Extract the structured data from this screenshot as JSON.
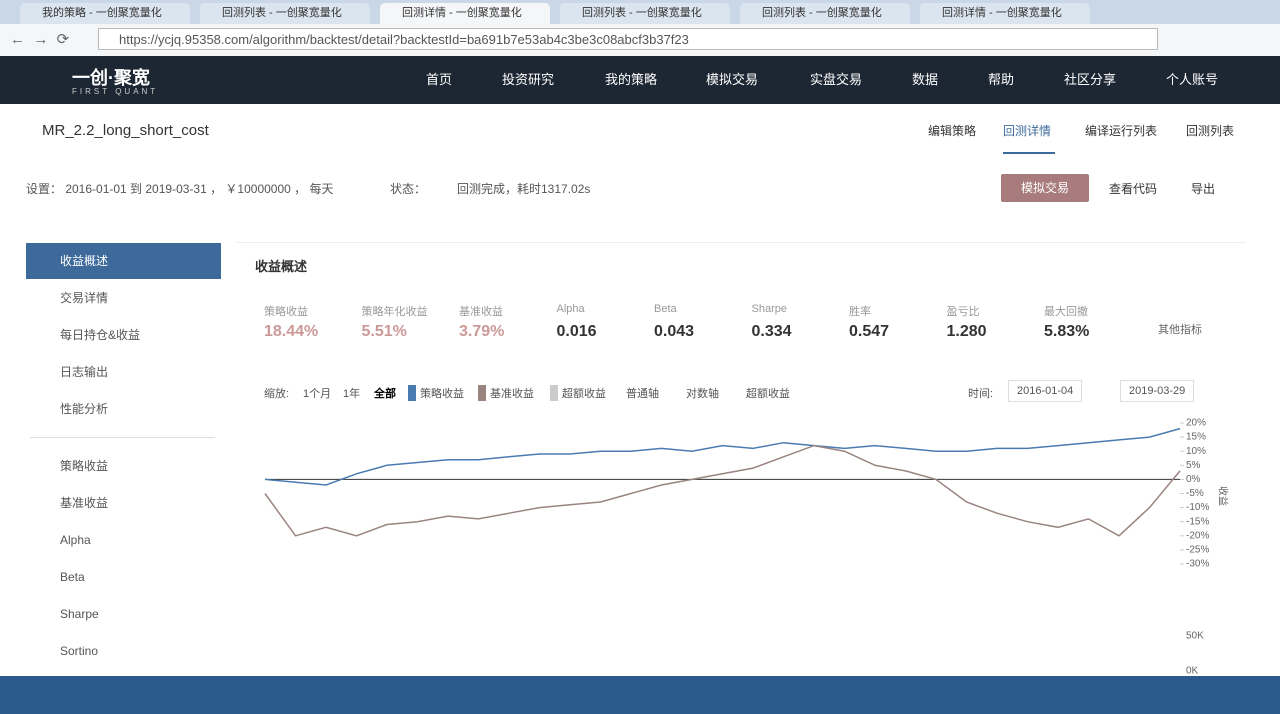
{
  "browser": {
    "tabs": [
      "我的策略 - 一创聚宽量化",
      "回测列表 - 一创聚宽量化",
      "回测详情 - 一创聚宽量化",
      "回测列表 - 一创聚宽量化",
      "回测列表 - 一创聚宽量化",
      "回测详情 - 一创聚宽量化"
    ],
    "url": "https://ycjq.95358.com/algorithm/backtest/detail?backtestId=ba691b7e53ab4c3be3c08abcf3b37f23"
  },
  "nav": {
    "logo": "一创·聚宽",
    "logo_sub": "FIRST QUANT",
    "items": [
      "首页",
      "投资研究",
      "我的策略",
      "模拟交易",
      "实盘交易",
      "数据",
      "帮助",
      "社区分享",
      "个人账号"
    ]
  },
  "header": {
    "title": "MR_2.2_long_short_cost",
    "links": [
      "编辑策略",
      "回测详情",
      "编译运行列表",
      "回测列表"
    ],
    "settings": "设置： 2016-01-01 到 2019-03-31 ， ￥10000000 ， 每天",
    "status_label": "状态：",
    "status": "回测完成，耗时1317.02s",
    "buttons": [
      "模拟交易",
      "查看代码",
      "导出"
    ]
  },
  "sidebar": [
    "收益概述",
    "交易详情",
    "每日持仓&收益",
    "日志输出",
    "性能分析",
    "策略收益",
    "基准收益",
    "Alpha",
    "Beta",
    "Sharpe",
    "Sortino"
  ],
  "panel": {
    "title": "收益概述",
    "metrics": [
      {
        "label": "策略收益",
        "value": "18.44%"
      },
      {
        "label": "策略年化收益",
        "value": "5.51%"
      },
      {
        "label": "基准收益",
        "value": "3.79%"
      },
      {
        "label": "Alpha",
        "value": "0.016"
      },
      {
        "label": "Beta",
        "value": "0.043"
      },
      {
        "label": "Sharpe",
        "value": "0.334"
      },
      {
        "label": "胜率",
        "value": "0.547"
      },
      {
        "label": "盈亏比",
        "value": "1.280"
      },
      {
        "label": "最大回撤",
        "value": "5.83%"
      }
    ],
    "more": "其他指标",
    "controls": {
      "zoom_label": "缩放:",
      "zoom": [
        "1个月",
        "1年",
        "全部"
      ],
      "legend": [
        "策略收益",
        "基准收益",
        "超额收益"
      ],
      "axis": [
        "普通轴",
        "对数轴",
        "超额收益"
      ],
      "time_label": "时间:",
      "start": "2016-01-04",
      "end": "2019-03-29"
    }
  },
  "chart": {
    "type": "line",
    "y_label": "收益",
    "ylim": [
      -30,
      20
    ],
    "yticks": [
      {
        "value": 20,
        "label": "20%"
      },
      {
        "value": 15,
        "label": "15%"
      },
      {
        "value": 10,
        "label": "10%"
      },
      {
        "value": 5,
        "label": "5%"
      },
      {
        "value": 0,
        "label": "0%"
      },
      {
        "value": -5,
        "label": "-5%"
      },
      {
        "value": -10,
        "label": "-10%"
      },
      {
        "value": -15,
        "label": "-15%"
      },
      {
        "value": -20,
        "label": "-20%"
      },
      {
        "value": -25,
        "label": "-25%"
      },
      {
        "value": -30,
        "label": "-30%"
      }
    ],
    "series": [
      {
        "name": "策略收益",
        "color": "#4a7bb0",
        "values": [
          0,
          -1,
          -2,
          2,
          5,
          6,
          7,
          7,
          8,
          9,
          9,
          10,
          10,
          11,
          10,
          12,
          11,
          13,
          12,
          11,
          12,
          11,
          10,
          10,
          11,
          11,
          12,
          13,
          14,
          15,
          18
        ]
      },
      {
        "name": "基准收益",
        "color": "#9a8480",
        "values": [
          -5,
          -20,
          -17,
          -20,
          -16,
          -15,
          -13,
          -14,
          -12,
          -10,
          -9,
          -8,
          -5,
          -2,
          0,
          2,
          4,
          8,
          12,
          10,
          5,
          3,
          0,
          -8,
          -12,
          -15,
          -17,
          -14,
          -20,
          -10,
          3
        ]
      }
    ],
    "vol_ticks": [
      "50K",
      "0K"
    ]
  }
}
